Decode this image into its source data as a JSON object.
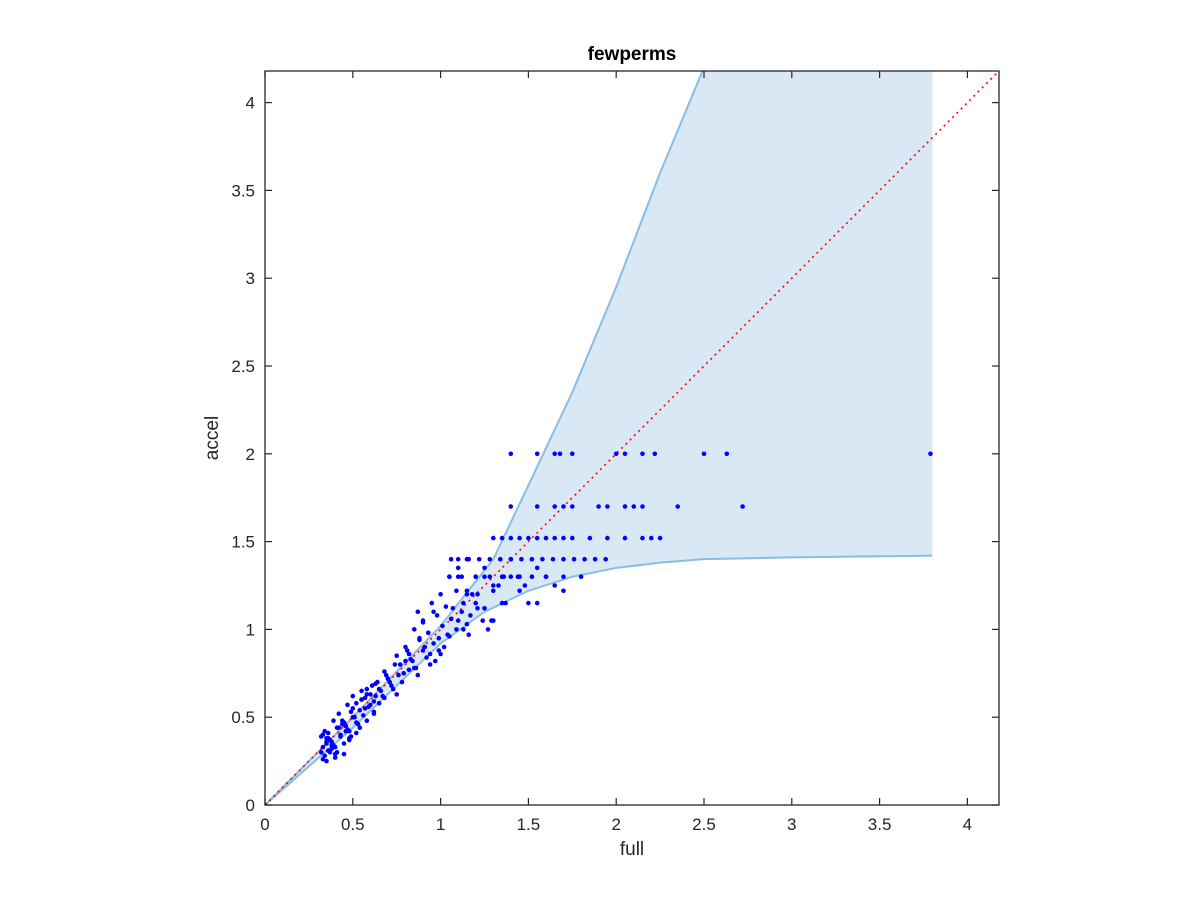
{
  "chart_data": {
    "type": "scatter",
    "title": "fewperms",
    "xlabel": "full",
    "ylabel": "accel",
    "xlim": [
      0,
      4.18
    ],
    "ylim": [
      0,
      4.18
    ],
    "xticks": [
      0,
      0.5,
      1,
      1.5,
      2,
      2.5,
      3,
      3.5,
      4
    ],
    "yticks": [
      0,
      0.5,
      1,
      1.5,
      2,
      2.5,
      3,
      3.5,
      4
    ],
    "xtick_labels": [
      "0",
      "0.5",
      "1",
      "1.5",
      "2",
      "2.5",
      "3",
      "3.5",
      "4"
    ],
    "ytick_labels": [
      "0",
      "0.5",
      "1",
      "1.5",
      "2",
      "2.5",
      "3",
      "3.5",
      "4"
    ],
    "grid": false,
    "legend": "none",
    "colors": {
      "points": "#0000ff",
      "band_fill": "#d9e8f5",
      "band_edge": "#8bbde0",
      "diagonal": "#ff0000",
      "axes": "#262626"
    },
    "band": {
      "upper": [
        [
          0,
          0
        ],
        [
          0.5,
          0.5
        ],
        [
          1,
          1.02
        ],
        [
          1.3,
          1.4
        ],
        [
          1.5,
          1.82
        ],
        [
          1.75,
          2.35
        ],
        [
          2,
          2.95
        ],
        [
          2.25,
          3.6
        ],
        [
          2.5,
          4.2
        ],
        [
          3.8,
          4.2
        ]
      ],
      "lower": [
        [
          0,
          0
        ],
        [
          0.5,
          0.44
        ],
        [
          0.75,
          0.68
        ],
        [
          1,
          0.92
        ],
        [
          1.25,
          1.1
        ],
        [
          1.5,
          1.22
        ],
        [
          1.75,
          1.3
        ],
        [
          2,
          1.35
        ],
        [
          2.25,
          1.38
        ],
        [
          2.5,
          1.4
        ],
        [
          3,
          1.41
        ],
        [
          3.8,
          1.42
        ]
      ]
    },
    "diagonal": [
      [
        0,
        0
      ],
      [
        4.18,
        4.18
      ]
    ],
    "series": [
      {
        "x": [
          0.0,
          0.32,
          0.33,
          0.34,
          0.35,
          0.36,
          0.32,
          0.33,
          0.35,
          0.37,
          0.34,
          0.36,
          0.38,
          0.4,
          0.33,
          0.35,
          0.37,
          0.39,
          0.41,
          0.42,
          0.36,
          0.38,
          0.4,
          0.43,
          0.45,
          0.44,
          0.46,
          0.48,
          0.39,
          0.41,
          0.43,
          0.45,
          0.47,
          0.49,
          0.5,
          0.42,
          0.44,
          0.46,
          0.48,
          0.5,
          0.52,
          0.54,
          0.47,
          0.49,
          0.51,
          0.53,
          0.55,
          0.57,
          0.5,
          0.52,
          0.54,
          0.56,
          0.58,
          0.6,
          0.62,
          0.55,
          0.57,
          0.59,
          0.61,
          0.63,
          0.65,
          0.58,
          0.6,
          0.62,
          0.64,
          0.66,
          0.68,
          0.7,
          0.63,
          0.65,
          0.67,
          0.69,
          0.71,
          0.73,
          0.75,
          0.68,
          0.7,
          0.72,
          0.74,
          0.76,
          0.78,
          0.8,
          0.82,
          0.75,
          0.77,
          0.79,
          0.81,
          0.83,
          0.85,
          0.87,
          0.8,
          0.82,
          0.84,
          0.86,
          0.88,
          0.9,
          0.92,
          0.94,
          0.85,
          0.88,
          0.91,
          0.94,
          0.97,
          1.0,
          0.9,
          0.93,
          0.96,
          0.99,
          0.87,
          0.9,
          0.93,
          0.96,
          0.99,
          1.02,
          1.05,
          0.95,
          0.98,
          1.01,
          1.04,
          1.07,
          1.1,
          1.13,
          1.16,
          1.0,
          1.03,
          1.06,
          1.09,
          1.12,
          1.15,
          1.18,
          1.21,
          1.24,
          1.27,
          1.05,
          1.09,
          1.13,
          1.17,
          1.21,
          1.25,
          1.29,
          1.33,
          1.37,
          1.06,
          1.1,
          1.15,
          1.2,
          1.25,
          1.3,
          1.35,
          1.4,
          1.45,
          1.5,
          1.1,
          1.15,
          1.2,
          1.25,
          1.3,
          1.35,
          1.4,
          1.48,
          1.55,
          1.6,
          1.65,
          1.1,
          1.16,
          1.22,
          1.28,
          1.34,
          1.4,
          1.46,
          1.52,
          1.58,
          1.64,
          1.7,
          1.76,
          1.82,
          1.88,
          1.94,
          1.05,
          1.12,
          1.2,
          1.28,
          1.36,
          1.44,
          1.52,
          1.6,
          1.7,
          1.8,
          1.3,
          1.35,
          1.4,
          1.45,
          1.5,
          1.55,
          1.6,
          1.65,
          1.7,
          1.75,
          1.85,
          1.95,
          2.05,
          2.15,
          2.2,
          2.25,
          1.4,
          1.55,
          1.65,
          1.7,
          1.75,
          1.9,
          1.95,
          2.05,
          2.1,
          2.15,
          2.35,
          2.72,
          1.4,
          1.55,
          1.65,
          1.68,
          1.75,
          2.0,
          2.05,
          2.15,
          2.22,
          2.5,
          2.63,
          3.79,
          1.55,
          1.7,
          1.15,
          1.3,
          1.45,
          0.4,
          0.45,
          0.38,
          0.48,
          0.52,
          0.58,
          0.62,
          0.35,
          0.55
        ],
        "y": [
          0.0,
          0.3,
          0.33,
          0.28,
          0.36,
          0.31,
          0.39,
          0.26,
          0.35,
          0.3,
          0.42,
          0.38,
          0.32,
          0.29,
          0.4,
          0.25,
          0.37,
          0.34,
          0.3,
          0.44,
          0.41,
          0.36,
          0.33,
          0.39,
          0.35,
          0.46,
          0.42,
          0.38,
          0.48,
          0.44,
          0.4,
          0.47,
          0.43,
          0.39,
          0.5,
          0.52,
          0.48,
          0.45,
          0.42,
          0.55,
          0.47,
          0.44,
          0.57,
          0.53,
          0.5,
          0.46,
          0.6,
          0.55,
          0.62,
          0.58,
          0.54,
          0.51,
          0.63,
          0.57,
          0.53,
          0.65,
          0.61,
          0.56,
          0.68,
          0.62,
          0.58,
          0.66,
          0.63,
          0.59,
          0.7,
          0.65,
          0.61,
          0.72,
          0.69,
          0.66,
          0.62,
          0.74,
          0.7,
          0.66,
          0.63,
          0.76,
          0.72,
          0.68,
          0.8,
          0.74,
          0.7,
          0.82,
          0.77,
          0.85,
          0.8,
          0.75,
          0.88,
          0.83,
          0.78,
          0.74,
          0.9,
          0.86,
          0.82,
          0.78,
          0.95,
          0.88,
          0.84,
          0.8,
          1.0,
          0.94,
          0.9,
          0.86,
          0.82,
          0.86,
          1.05,
          0.98,
          0.92,
          0.88,
          1.1,
          1.04,
          0.98,
          1.1,
          0.95,
          0.9,
          0.96,
          1.15,
          1.08,
          1.02,
          0.97,
          1.12,
          1.05,
          1.0,
          0.97,
          1.2,
          1.13,
          1.06,
          1.0,
          1.1,
          1.03,
          1.2,
          1.12,
          1.05,
          1.0,
          1.3,
          1.22,
          1.15,
          1.08,
          1.2,
          1.12,
          1.05,
          1.25,
          1.15,
          1.4,
          1.3,
          1.22,
          1.15,
          1.3,
          1.22,
          1.15,
          1.3,
          1.22,
          1.15,
          1.35,
          1.4,
          1.3,
          1.35,
          1.25,
          1.3,
          1.4,
          1.25,
          1.35,
          1.3,
          1.25,
          1.4,
          1.4,
          1.4,
          1.4,
          1.4,
          1.4,
          1.4,
          1.4,
          1.4,
          1.4,
          1.4,
          1.4,
          1.4,
          1.4,
          1.4,
          1.3,
          1.3,
          1.3,
          1.3,
          1.3,
          1.3,
          1.3,
          1.3,
          1.3,
          1.3,
          1.52,
          1.52,
          1.52,
          1.52,
          1.52,
          1.52,
          1.52,
          1.52,
          1.52,
          1.52,
          1.52,
          1.52,
          1.52,
          1.52,
          1.52,
          1.52,
          1.7,
          1.7,
          1.7,
          1.7,
          1.7,
          1.7,
          1.7,
          1.7,
          1.7,
          1.7,
          1.7,
          1.7,
          2.0,
          2.0,
          2.0,
          2.0,
          2.0,
          2.0,
          2.0,
          2.0,
          2.0,
          2.0,
          2.0,
          2.0,
          1.15,
          1.22,
          1.2,
          1.05,
          1.3,
          0.27,
          0.29,
          0.34,
          0.37,
          0.41,
          0.48,
          0.52,
          0.38,
          0.6
        ]
      }
    ]
  }
}
